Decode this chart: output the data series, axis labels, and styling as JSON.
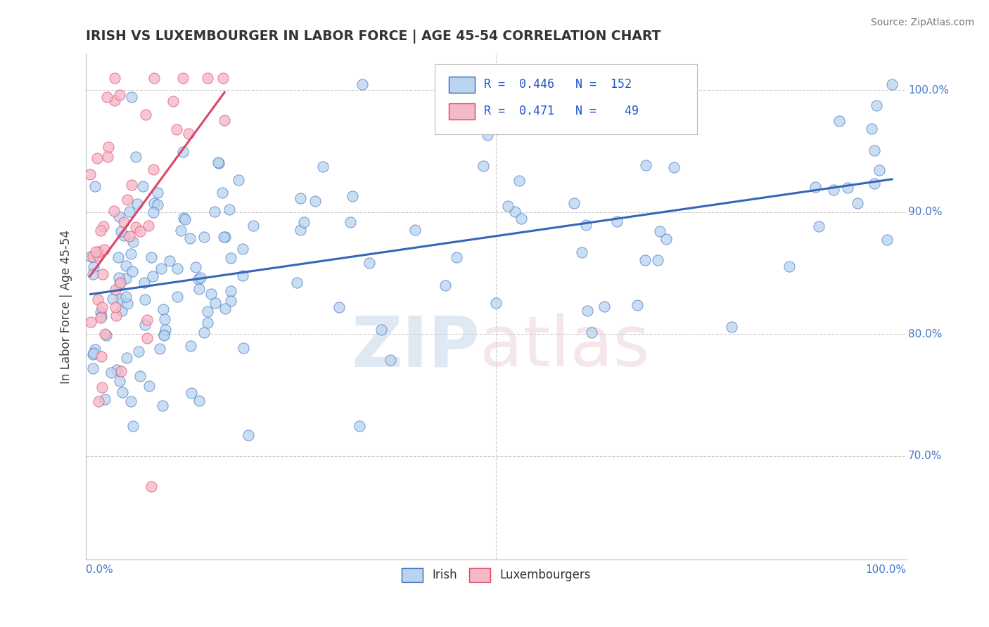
{
  "title": "IRISH VS LUXEMBOURGER IN LABOR FORCE | AGE 45-54 CORRELATION CHART",
  "source": "Source: ZipAtlas.com",
  "ylabel": "In Labor Force | Age 45-54",
  "xlim": [
    0.0,
    1.0
  ],
  "ylim": [
    0.615,
    1.03
  ],
  "yticks": [
    0.7,
    0.8,
    0.9,
    1.0
  ],
  "ytick_labels": [
    "70.0%",
    "80.0%",
    "90.0%",
    "100.0%"
  ],
  "blue_R": 0.446,
  "blue_N": 152,
  "pink_R": 0.471,
  "pink_N": 49,
  "blue_color": "#b8d4ee",
  "pink_color": "#f5b8c8",
  "blue_line_color": "#3366bb",
  "pink_line_color": "#dd4466",
  "legend_R_color": "#2255cc",
  "background_color": "#ffffff",
  "grid_color": "#cccccc",
  "title_color": "#333333",
  "source_color": "#777777",
  "ylabel_color": "#444444",
  "tick_label_color": "#4477cc"
}
